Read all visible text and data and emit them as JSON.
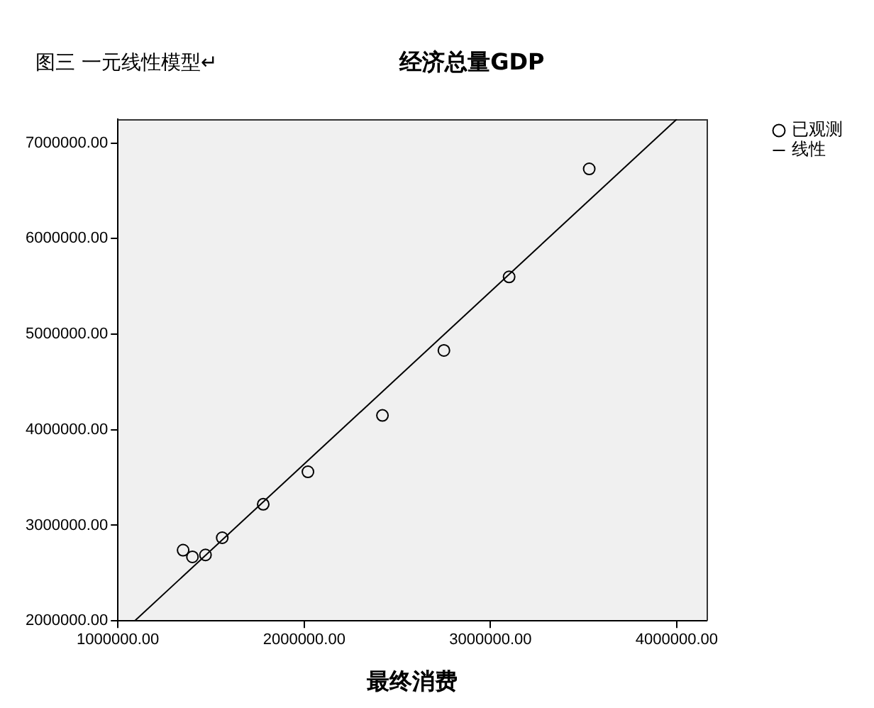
{
  "chart_data": {
    "type": "scatter",
    "title": "经济总量GDP",
    "xlabel": "最终消费",
    "annotations": [
      "图三 一元线性模型↵"
    ],
    "xlim": [
      1000000,
      4160000
    ],
    "xticks": [
      {
        "value": 1000000,
        "label": "1000000.00"
      },
      {
        "value": 2000000,
        "label": "2000000.00"
      },
      {
        "value": 3000000,
        "label": "3000000.00"
      },
      {
        "value": 4000000,
        "label": "4000000.00"
      }
    ],
    "ylim": [
      2000000,
      7250000
    ],
    "yticks": [
      {
        "value": 2000000,
        "label": "2000000.00"
      },
      {
        "value": 3000000,
        "label": "3000000.00"
      },
      {
        "value": 4000000,
        "label": "4000000.00"
      },
      {
        "value": 5000000,
        "label": "5000000.00"
      },
      {
        "value": 6000000,
        "label": "6000000.00"
      },
      {
        "value": 7000000,
        "label": "7000000.00"
      }
    ],
    "legend": "top right",
    "marker": "circle",
    "series": [
      {
        "name": "已观测",
        "type": "scatter",
        "color": "#000000",
        "x": [
          1350000,
          1400000,
          1470000,
          1560000,
          1780000,
          2020000,
          2420000,
          2750000,
          3100000,
          3530000
        ],
        "values": [
          2740000,
          2670000,
          2690000,
          2870000,
          3220000,
          3560000,
          4150000,
          4830000,
          5600000,
          6730000
        ]
      },
      {
        "name": "线性",
        "type": "line",
        "color": "#000000",
        "marker": "none",
        "x": [
          1090000,
          4000000
        ],
        "values": [
          2000000,
          7250000
        ]
      }
    ]
  }
}
